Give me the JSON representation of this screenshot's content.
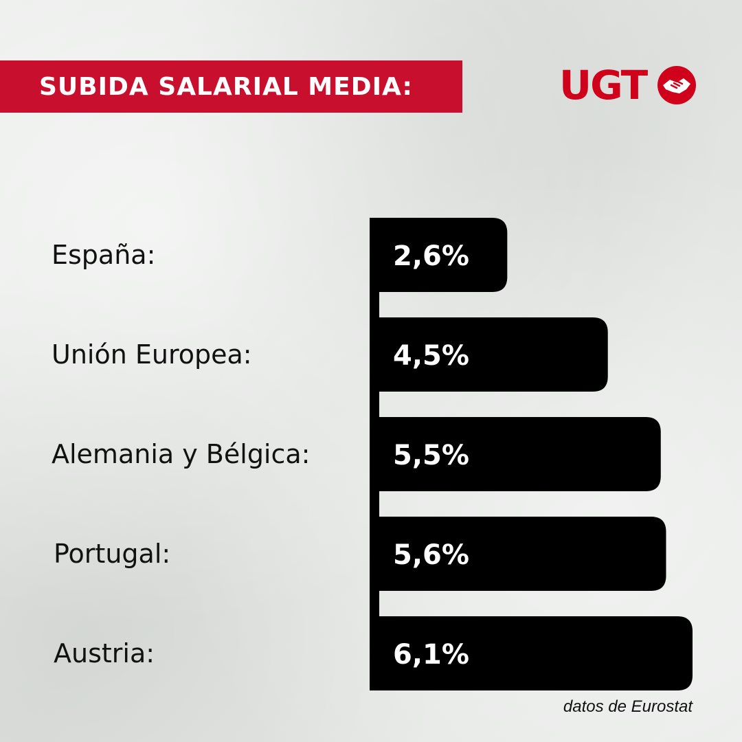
{
  "header": {
    "title": "SUBIDA SALARIAL MEDIA:"
  },
  "logo": {
    "text": "UGT",
    "icon": "handshake-icon",
    "color": "#d0021b"
  },
  "source_note": "datos de Eurostat",
  "colors": {
    "accent": "#c8102e",
    "bar": "#000000",
    "bar_text": "#ffffff",
    "label": "#111111"
  },
  "chart_data": {
    "type": "bar",
    "orientation": "horizontal",
    "categories": [
      "España:",
      "Unión Europea:",
      "Alemania y Bélgica:",
      "Portugal:",
      "Austria:"
    ],
    "values": [
      2.6,
      4.5,
      5.5,
      5.6,
      6.1
    ],
    "value_labels": [
      "2,6%",
      "4,5%",
      "5,5%",
      "5,6%",
      "6,1%"
    ],
    "unit": "%",
    "xlim": [
      0,
      6.1
    ],
    "grid": false,
    "legend": "none"
  }
}
